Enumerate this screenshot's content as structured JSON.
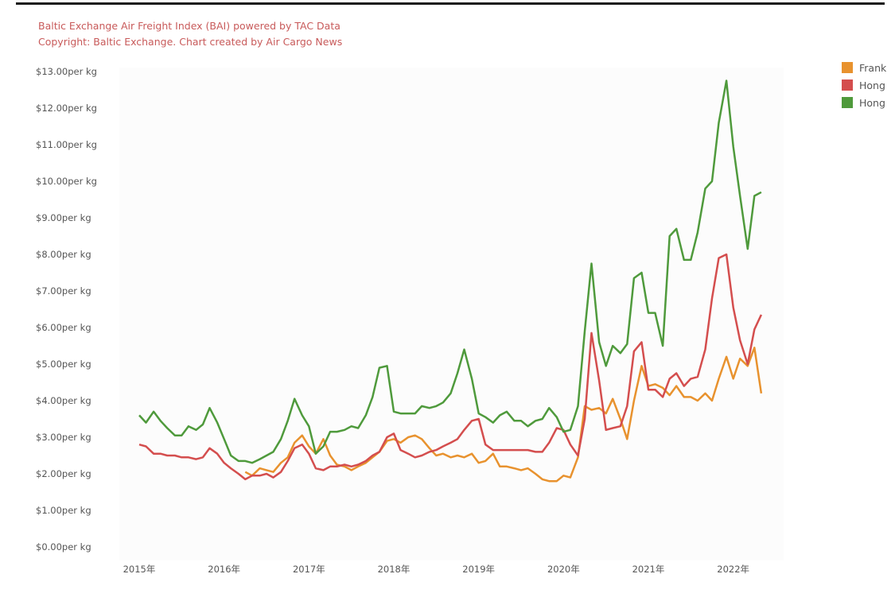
{
  "header": {
    "caption_line1": "Baltic Exchange Air Freight Index (BAI) powered by TAC Data",
    "caption_line2": "Copyright: Baltic Exchange. Chart created by Air Cargo News"
  },
  "colors": {
    "caption": "#c85a5a",
    "frankfurt": "#e8922e",
    "hong_kong_red": "#d44e4e",
    "hong_kong_green": "#4f9a3c"
  },
  "chart_data": {
    "type": "line",
    "title": "",
    "xlabel": "",
    "ylabel": "",
    "x_ticks": [
      "2015年",
      "2016年",
      "2017年",
      "2018年",
      "2019年",
      "2020年",
      "2021年",
      "2022年"
    ],
    "y_ticks": [
      "$0.00per kg",
      "$1.00per kg",
      "$2.00per kg",
      "$3.00per kg",
      "$4.00per kg",
      "$5.00per kg",
      "$6.00per kg",
      "$7.00per kg",
      "$8.00per kg",
      "$9.00per kg",
      "$10.00per kg",
      "$11.00per kg",
      "$12.00per kg",
      "$13.00per kg"
    ],
    "ylim": [
      0,
      13
    ],
    "xlim": [
      2015.0,
      2022.5
    ],
    "grid": false,
    "legend_position": "top-right",
    "series": [
      {
        "name": "Frank",
        "color": "#e8922e",
        "points": [
          [
            2016.25,
            2.05
          ],
          [
            2016.33,
            1.95
          ],
          [
            2016.42,
            2.15
          ],
          [
            2016.5,
            2.1
          ],
          [
            2016.58,
            2.05
          ],
          [
            2016.67,
            2.3
          ],
          [
            2016.75,
            2.45
          ],
          [
            2016.83,
            2.85
          ],
          [
            2016.92,
            3.05
          ],
          [
            2017.0,
            2.75
          ],
          [
            2017.08,
            2.55
          ],
          [
            2017.17,
            2.95
          ],
          [
            2017.25,
            2.5
          ],
          [
            2017.33,
            2.25
          ],
          [
            2017.42,
            2.2
          ],
          [
            2017.5,
            2.1
          ],
          [
            2017.58,
            2.2
          ],
          [
            2017.67,
            2.3
          ],
          [
            2017.75,
            2.45
          ],
          [
            2017.83,
            2.6
          ],
          [
            2017.92,
            2.9
          ],
          [
            2018.0,
            2.95
          ],
          [
            2018.08,
            2.85
          ],
          [
            2018.17,
            3.0
          ],
          [
            2018.25,
            3.05
          ],
          [
            2018.33,
            2.95
          ],
          [
            2018.42,
            2.7
          ],
          [
            2018.5,
            2.5
          ],
          [
            2018.58,
            2.55
          ],
          [
            2018.67,
            2.45
          ],
          [
            2018.75,
            2.5
          ],
          [
            2018.83,
            2.45
          ],
          [
            2018.92,
            2.55
          ],
          [
            2019.0,
            2.3
          ],
          [
            2019.08,
            2.35
          ],
          [
            2019.17,
            2.55
          ],
          [
            2019.25,
            2.2
          ],
          [
            2019.33,
            2.2
          ],
          [
            2019.42,
            2.15
          ],
          [
            2019.5,
            2.1
          ],
          [
            2019.58,
            2.15
          ],
          [
            2019.67,
            2.0
          ],
          [
            2019.75,
            1.85
          ],
          [
            2019.83,
            1.8
          ],
          [
            2019.92,
            1.8
          ],
          [
            2020.0,
            1.95
          ],
          [
            2020.08,
            1.9
          ],
          [
            2020.17,
            2.45
          ],
          [
            2020.25,
            3.85
          ],
          [
            2020.33,
            3.75
          ],
          [
            2020.42,
            3.8
          ],
          [
            2020.5,
            3.65
          ],
          [
            2020.58,
            4.05
          ],
          [
            2020.67,
            3.5
          ],
          [
            2020.75,
            2.95
          ],
          [
            2020.83,
            4.0
          ],
          [
            2020.92,
            4.95
          ],
          [
            2021.0,
            4.4
          ],
          [
            2021.08,
            4.45
          ],
          [
            2021.17,
            4.35
          ],
          [
            2021.25,
            4.15
          ],
          [
            2021.33,
            4.4
          ],
          [
            2021.42,
            4.1
          ],
          [
            2021.5,
            4.1
          ],
          [
            2021.58,
            4.0
          ],
          [
            2021.67,
            4.2
          ],
          [
            2021.75,
            4.0
          ],
          [
            2021.83,
            4.6
          ],
          [
            2021.92,
            5.2
          ],
          [
            2022.0,
            4.6
          ],
          [
            2022.08,
            5.15
          ],
          [
            2022.17,
            4.95
          ],
          [
            2022.25,
            5.45
          ],
          [
            2022.33,
            4.2
          ]
        ]
      },
      {
        "name": "Hong",
        "color": "#d44e4e",
        "points": [
          [
            2015.0,
            2.8
          ],
          [
            2015.08,
            2.75
          ],
          [
            2015.17,
            2.55
          ],
          [
            2015.25,
            2.55
          ],
          [
            2015.33,
            2.5
          ],
          [
            2015.42,
            2.5
          ],
          [
            2015.5,
            2.45
          ],
          [
            2015.58,
            2.45
          ],
          [
            2015.67,
            2.4
          ],
          [
            2015.75,
            2.45
          ],
          [
            2015.83,
            2.7
          ],
          [
            2015.92,
            2.55
          ],
          [
            2016.0,
            2.3
          ],
          [
            2016.08,
            2.15
          ],
          [
            2016.17,
            2.0
          ],
          [
            2016.25,
            1.85
          ],
          [
            2016.33,
            1.95
          ],
          [
            2016.42,
            1.95
          ],
          [
            2016.5,
            2.0
          ],
          [
            2016.58,
            1.9
          ],
          [
            2016.67,
            2.05
          ],
          [
            2016.75,
            2.35
          ],
          [
            2016.83,
            2.7
          ],
          [
            2016.92,
            2.8
          ],
          [
            2017.0,
            2.55
          ],
          [
            2017.08,
            2.15
          ],
          [
            2017.17,
            2.1
          ],
          [
            2017.25,
            2.2
          ],
          [
            2017.33,
            2.2
          ],
          [
            2017.42,
            2.25
          ],
          [
            2017.5,
            2.2
          ],
          [
            2017.58,
            2.25
          ],
          [
            2017.67,
            2.35
          ],
          [
            2017.75,
            2.5
          ],
          [
            2017.83,
            2.6
          ],
          [
            2017.92,
            3.0
          ],
          [
            2018.0,
            3.1
          ],
          [
            2018.08,
            2.65
          ],
          [
            2018.17,
            2.55
          ],
          [
            2018.25,
            2.45
          ],
          [
            2018.33,
            2.5
          ],
          [
            2018.42,
            2.6
          ],
          [
            2018.5,
            2.65
          ],
          [
            2018.58,
            2.75
          ],
          [
            2018.67,
            2.85
          ],
          [
            2018.75,
            2.95
          ],
          [
            2018.83,
            3.2
          ],
          [
            2018.92,
            3.45
          ],
          [
            2019.0,
            3.5
          ],
          [
            2019.08,
            2.8
          ],
          [
            2019.17,
            2.65
          ],
          [
            2019.25,
            2.65
          ],
          [
            2019.33,
            2.65
          ],
          [
            2019.42,
            2.65
          ],
          [
            2019.5,
            2.65
          ],
          [
            2019.58,
            2.65
          ],
          [
            2019.67,
            2.6
          ],
          [
            2019.75,
            2.6
          ],
          [
            2019.83,
            2.85
          ],
          [
            2019.92,
            3.25
          ],
          [
            2020.0,
            3.2
          ],
          [
            2020.08,
            2.8
          ],
          [
            2020.17,
            2.5
          ],
          [
            2020.25,
            3.5
          ],
          [
            2020.33,
            5.85
          ],
          [
            2020.42,
            4.55
          ],
          [
            2020.5,
            3.2
          ],
          [
            2020.58,
            3.25
          ],
          [
            2020.67,
            3.3
          ],
          [
            2020.75,
            3.85
          ],
          [
            2020.83,
            5.35
          ],
          [
            2020.92,
            5.6
          ],
          [
            2021.0,
            4.3
          ],
          [
            2021.08,
            4.3
          ],
          [
            2021.17,
            4.1
          ],
          [
            2021.25,
            4.6
          ],
          [
            2021.33,
            4.75
          ],
          [
            2021.42,
            4.4
          ],
          [
            2021.5,
            4.6
          ],
          [
            2021.58,
            4.65
          ],
          [
            2021.67,
            5.4
          ],
          [
            2021.75,
            6.8
          ],
          [
            2021.83,
            7.9
          ],
          [
            2021.92,
            8.0
          ],
          [
            2022.0,
            6.55
          ],
          [
            2022.08,
            5.65
          ],
          [
            2022.17,
            5.0
          ],
          [
            2022.25,
            5.95
          ],
          [
            2022.33,
            6.35
          ]
        ]
      },
      {
        "name": "Hong",
        "color": "#4f9a3c",
        "points": [
          [
            2015.0,
            3.6
          ],
          [
            2015.08,
            3.4
          ],
          [
            2015.17,
            3.7
          ],
          [
            2015.25,
            3.45
          ],
          [
            2015.33,
            3.25
          ],
          [
            2015.42,
            3.05
          ],
          [
            2015.5,
            3.05
          ],
          [
            2015.58,
            3.3
          ],
          [
            2015.67,
            3.2
          ],
          [
            2015.75,
            3.35
          ],
          [
            2015.83,
            3.8
          ],
          [
            2015.92,
            3.4
          ],
          [
            2016.0,
            2.95
          ],
          [
            2016.08,
            2.5
          ],
          [
            2016.17,
            2.35
          ],
          [
            2016.25,
            2.35
          ],
          [
            2016.33,
            2.3
          ],
          [
            2016.42,
            2.4
          ],
          [
            2016.5,
            2.5
          ],
          [
            2016.58,
            2.6
          ],
          [
            2016.67,
            2.95
          ],
          [
            2016.75,
            3.45
          ],
          [
            2016.83,
            4.05
          ],
          [
            2016.92,
            3.6
          ],
          [
            2017.0,
            3.3
          ],
          [
            2017.08,
            2.55
          ],
          [
            2017.17,
            2.75
          ],
          [
            2017.25,
            3.15
          ],
          [
            2017.33,
            3.15
          ],
          [
            2017.42,
            3.2
          ],
          [
            2017.5,
            3.3
          ],
          [
            2017.58,
            3.25
          ],
          [
            2017.67,
            3.6
          ],
          [
            2017.75,
            4.1
          ],
          [
            2017.83,
            4.9
          ],
          [
            2017.92,
            4.95
          ],
          [
            2018.0,
            3.7
          ],
          [
            2018.08,
            3.65
          ],
          [
            2018.17,
            3.65
          ],
          [
            2018.25,
            3.65
          ],
          [
            2018.33,
            3.85
          ],
          [
            2018.42,
            3.8
          ],
          [
            2018.5,
            3.85
          ],
          [
            2018.58,
            3.95
          ],
          [
            2018.67,
            4.2
          ],
          [
            2018.75,
            4.75
          ],
          [
            2018.83,
            5.4
          ],
          [
            2018.92,
            4.6
          ],
          [
            2019.0,
            3.65
          ],
          [
            2019.08,
            3.55
          ],
          [
            2019.17,
            3.4
          ],
          [
            2019.25,
            3.6
          ],
          [
            2019.33,
            3.7
          ],
          [
            2019.42,
            3.45
          ],
          [
            2019.5,
            3.45
          ],
          [
            2019.58,
            3.3
          ],
          [
            2019.67,
            3.45
          ],
          [
            2019.75,
            3.5
          ],
          [
            2019.83,
            3.8
          ],
          [
            2019.92,
            3.55
          ],
          [
            2020.0,
            3.15
          ],
          [
            2020.08,
            3.2
          ],
          [
            2020.17,
            3.85
          ],
          [
            2020.25,
            5.9
          ],
          [
            2020.33,
            7.75
          ],
          [
            2020.42,
            5.6
          ],
          [
            2020.5,
            4.95
          ],
          [
            2020.58,
            5.5
          ],
          [
            2020.67,
            5.3
          ],
          [
            2020.75,
            5.55
          ],
          [
            2020.83,
            7.35
          ],
          [
            2020.92,
            7.5
          ],
          [
            2021.0,
            6.4
          ],
          [
            2021.08,
            6.4
          ],
          [
            2021.17,
            5.5
          ],
          [
            2021.25,
            8.5
          ],
          [
            2021.33,
            8.7
          ],
          [
            2021.42,
            7.85
          ],
          [
            2021.5,
            7.85
          ],
          [
            2021.58,
            8.6
          ],
          [
            2021.67,
            9.8
          ],
          [
            2021.75,
            10.0
          ],
          [
            2021.83,
            11.6
          ],
          [
            2021.92,
            12.75
          ],
          [
            2022.0,
            10.95
          ],
          [
            2022.08,
            9.6
          ],
          [
            2022.17,
            8.15
          ],
          [
            2022.25,
            9.6
          ],
          [
            2022.33,
            9.7
          ]
        ]
      }
    ]
  }
}
